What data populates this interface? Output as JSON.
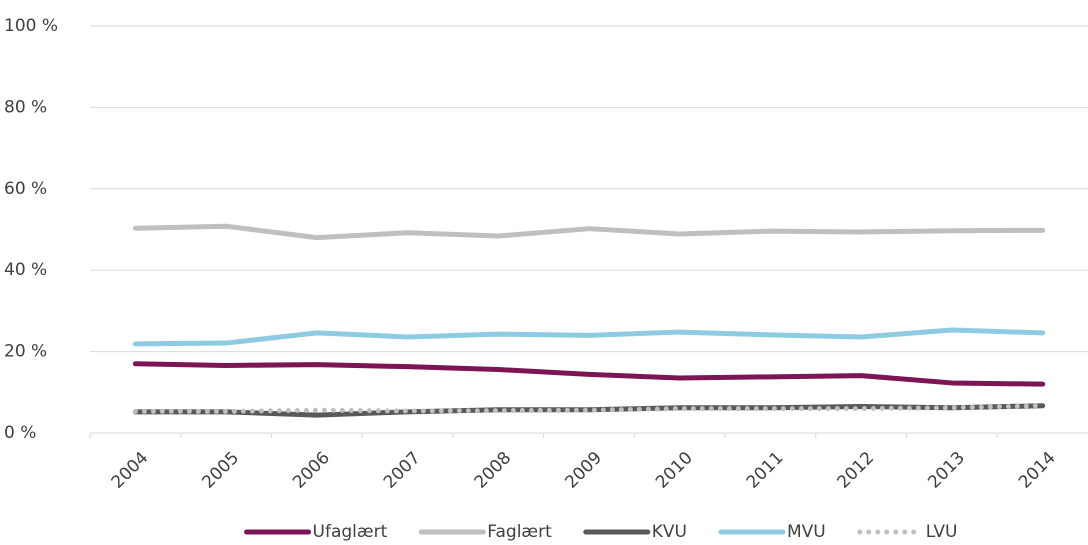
{
  "chart_data": {
    "type": "line",
    "categories": [
      "2004",
      "2005",
      "2006",
      "2007",
      "2008",
      "2009",
      "2010",
      "2011",
      "2012",
      "2013",
      "2014"
    ],
    "series": [
      {
        "name": "Ufaglært",
        "color": "#7b1553",
        "style": "solid",
        "values": [
          17.0,
          16.6,
          16.8,
          16.3,
          15.6,
          14.4,
          13.5,
          13.8,
          14.1,
          12.3,
          12.0
        ]
      },
      {
        "name": "Faglært",
        "color": "#bfbfbf",
        "style": "solid",
        "values": [
          50.3,
          50.8,
          48.0,
          49.2,
          48.4,
          50.2,
          48.9,
          49.6,
          49.4,
          49.7,
          49.8
        ]
      },
      {
        "name": "KVU",
        "color": "#595959",
        "style": "solid",
        "values": [
          5.2,
          5.2,
          4.4,
          5.2,
          5.7,
          5.7,
          6.2,
          6.2,
          6.5,
          6.2,
          6.7
        ]
      },
      {
        "name": "MVU",
        "color": "#8ecae3",
        "style": "solid",
        "values": [
          21.9,
          22.1,
          24.6,
          23.6,
          24.3,
          24.0,
          24.8,
          24.1,
          23.6,
          25.3,
          24.6
        ]
      },
      {
        "name": "LVU",
        "color": "#bfbfbf",
        "style": "dotted",
        "values": [
          5.3,
          5.3,
          5.6,
          5.4,
          5.5,
          5.6,
          6.0,
          6.0,
          6.0,
          6.2,
          6.7
        ]
      }
    ],
    "ylim": [
      0,
      100
    ],
    "yticks": [
      {
        "value": 0,
        "label": "0 %"
      },
      {
        "value": 20,
        "label": "20 %"
      },
      {
        "value": 40,
        "label": "40 %"
      },
      {
        "value": 60,
        "label": "60 %"
      },
      {
        "value": 80,
        "label": "80 %"
      },
      {
        "value": 100,
        "label": "100 %"
      }
    ],
    "grid": true,
    "legend": "bottom"
  }
}
